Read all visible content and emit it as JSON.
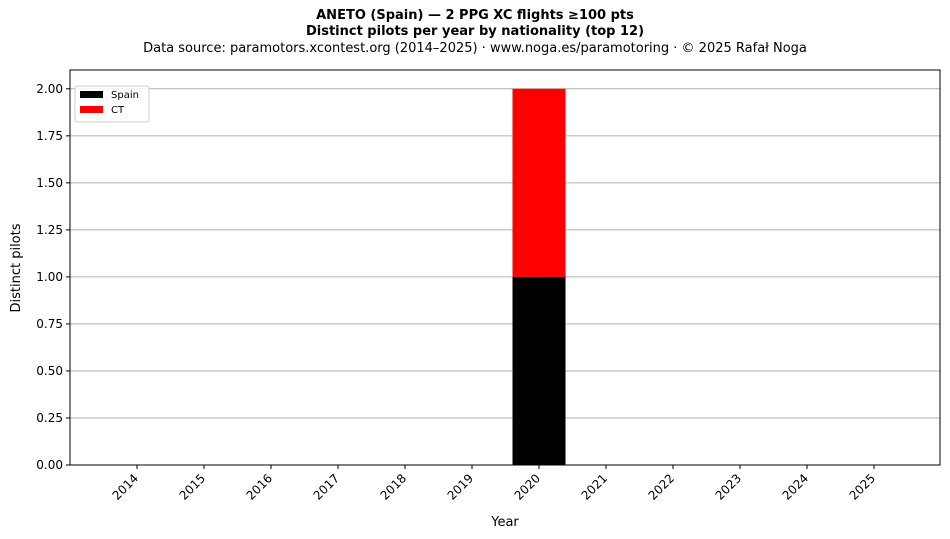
{
  "title_line1": "ANETO (Spain)  —  2 PPG XC flights ≥100 pts",
  "title_line2": "Distinct pilots per year by nationality (top 12)",
  "subtitle": "Data source: paramotors.xcontest.org (2014–2025)  ·  www.noga.es/paramotoring  ·  © 2025 Rafał Noga",
  "chart_data": {
    "type": "bar",
    "stacked": true,
    "categories": [
      "2014",
      "2015",
      "2016",
      "2017",
      "2018",
      "2019",
      "2020",
      "2021",
      "2022",
      "2023",
      "2024",
      "2025"
    ],
    "series": [
      {
        "name": "Spain",
        "color": "#000000",
        "values": [
          0,
          0,
          0,
          0,
          0,
          0,
          1,
          0,
          0,
          0,
          0,
          0
        ]
      },
      {
        "name": "CT",
        "color": "#ff0000",
        "values": [
          0,
          0,
          0,
          0,
          0,
          0,
          1,
          0,
          0,
          0,
          0,
          0
        ]
      }
    ],
    "xlabel": "Year",
    "ylabel": "Distinct pilots",
    "ylim": [
      0,
      2.1
    ],
    "yticks": [
      "0.00",
      "0.25",
      "0.50",
      "0.75",
      "1.00",
      "1.25",
      "1.50",
      "1.75",
      "2.00"
    ],
    "grid": "horizontal",
    "legend_position": "top-left"
  }
}
